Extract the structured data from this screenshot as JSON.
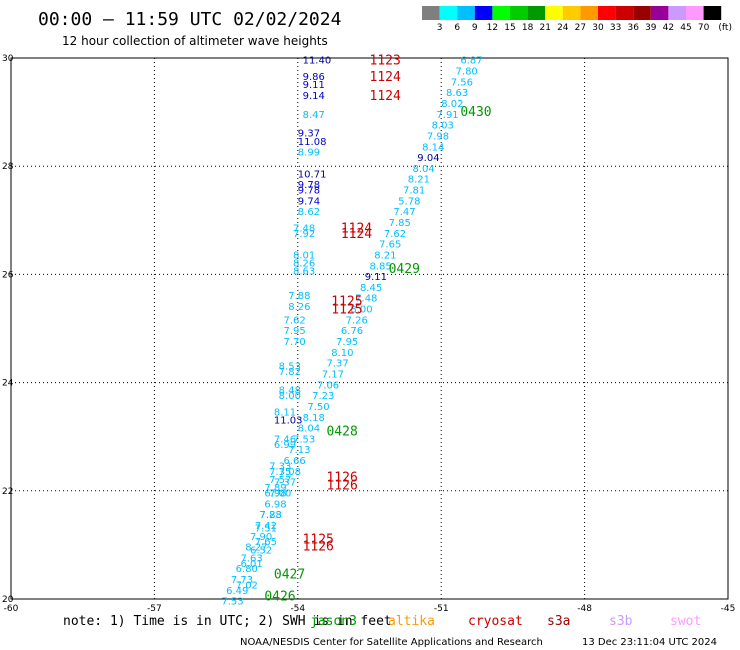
{
  "header": {
    "title": "00:00 – 11:59 UTC 02/02/2024",
    "subtitle": "12 hour collection of altimeter wave heights"
  },
  "color_scale": {
    "labels": [
      "3",
      "6",
      "9",
      "12",
      "15",
      "18",
      "21",
      "24",
      "27",
      "30",
      "33",
      "36",
      "39",
      "42",
      "45",
      "70"
    ],
    "unit": "(ft)",
    "colors": [
      "#7f7f7f",
      "#00ffff",
      "#00bfff",
      "#0000ff",
      "#00ff00",
      "#00cc00",
      "#009900",
      "#ffff00",
      "#ffcc00",
      "#ff9900",
      "#ff0000",
      "#cc0000",
      "#990000",
      "#990099",
      "#cc99ff",
      "#ff99ff",
      "#000000"
    ]
  },
  "footer": {
    "note": "note: 1) Time is in UTC; 2) SWH is in feet",
    "credit": "NOAA/NESDIS Center for Satellite Applications and Research",
    "timestamp": "13 Dec 23:11:04 UTC 2024",
    "satellites": [
      {
        "name": "jason3",
        "color": "#009900"
      },
      {
        "name": "altika",
        "color": "#ff9900"
      },
      {
        "name": "cryosat",
        "color": "#cc0000"
      },
      {
        "name": "s3a",
        "color": "#990000"
      },
      {
        "name": "s3b",
        "color": "#cc99ff"
      },
      {
        "name": "swot",
        "color": "#ff99ff"
      }
    ]
  },
  "chart_data": {
    "type": "scatter",
    "title": "00:00 – 11:59 UTC 02/02/2024",
    "xlim": [
      -60,
      -45
    ],
    "ylim": [
      20,
      30
    ],
    "xticks": [
      "-60",
      "-57",
      "-54",
      "-51",
      "-48",
      "-45"
    ],
    "yticks": [
      "20",
      "22",
      "24",
      "26",
      "28",
      "30"
    ],
    "grid": true,
    "series": [
      {
        "name": "jason3",
        "color": "#009900",
        "pass_labels": [
          {
            "label": "0430",
            "x": -50.6,
            "y": 29.0
          },
          {
            "label": "0429",
            "x": -52.1,
            "y": 26.1
          },
          {
            "label": "0428",
            "x": -53.4,
            "y": 23.1
          },
          {
            "label": "0427",
            "x": -54.5,
            "y": 20.45
          },
          {
            "label": "0426",
            "x": -54.7,
            "y": 20.05
          }
        ],
        "points": [
          {
            "x": -50.6,
            "y": 29.95,
            "v": "6.87",
            "c": "#00bfff"
          },
          {
            "x": -50.7,
            "y": 29.75,
            "v": "7.80",
            "c": "#00bfff"
          },
          {
            "x": -50.8,
            "y": 29.55,
            "v": "7.56",
            "c": "#00bfff"
          },
          {
            "x": -50.9,
            "y": 29.35,
            "v": "8.63",
            "c": "#00bfff"
          },
          {
            "x": -51.0,
            "y": 29.15,
            "v": "8.02",
            "c": "#00bfff"
          },
          {
            "x": -51.1,
            "y": 28.95,
            "v": "7.91",
            "c": "#00bfff"
          },
          {
            "x": -51.2,
            "y": 28.75,
            "v": "8.03",
            "c": "#00bfff"
          },
          {
            "x": -51.3,
            "y": 28.55,
            "v": "7.98",
            "c": "#00bfff"
          },
          {
            "x": -51.4,
            "y": 28.35,
            "v": "8.14",
            "c": "#00bfff"
          },
          {
            "x": -51.5,
            "y": 28.15,
            "v": "9.04",
            "c": "#000099"
          },
          {
            "x": -51.6,
            "y": 27.95,
            "v": "8.04",
            "c": "#00bfff"
          },
          {
            "x": -51.7,
            "y": 27.75,
            "v": "8.21",
            "c": "#00bfff"
          },
          {
            "x": -51.8,
            "y": 27.55,
            "v": "7.81",
            "c": "#00bfff"
          },
          {
            "x": -51.9,
            "y": 27.35,
            "v": "5.78",
            "c": "#00bfff"
          },
          {
            "x": -52.0,
            "y": 27.15,
            "v": "7.47",
            "c": "#00bfff"
          },
          {
            "x": -52.1,
            "y": 26.95,
            "v": "7.85",
            "c": "#00bfff"
          },
          {
            "x": -52.2,
            "y": 26.75,
            "v": "7.62",
            "c": "#00bfff"
          },
          {
            "x": -52.3,
            "y": 26.55,
            "v": "7.65",
            "c": "#00bfff"
          },
          {
            "x": -52.4,
            "y": 26.35,
            "v": "8.21",
            "c": "#00bfff"
          },
          {
            "x": -52.5,
            "y": 26.15,
            "v": "8.85",
            "c": "#00bfff"
          },
          {
            "x": -52.6,
            "y": 25.95,
            "v": "9.11",
            "c": "#000099"
          },
          {
            "x": -52.7,
            "y": 25.75,
            "v": "8.45",
            "c": "#00bfff"
          },
          {
            "x": -52.8,
            "y": 25.55,
            "v": "7.48",
            "c": "#00bfff"
          },
          {
            "x": -52.9,
            "y": 25.35,
            "v": "8.00",
            "c": "#00bfff"
          },
          {
            "x": -53.0,
            "y": 25.15,
            "v": "7.26",
            "c": "#00bfff"
          },
          {
            "x": -53.1,
            "y": 24.95,
            "v": "6.76",
            "c": "#00bfff"
          },
          {
            "x": -53.2,
            "y": 24.75,
            "v": "7.95",
            "c": "#00bfff"
          },
          {
            "x": -53.3,
            "y": 24.55,
            "v": "8.10",
            "c": "#00bfff"
          },
          {
            "x": -53.4,
            "y": 24.35,
            "v": "7.37",
            "c": "#00bfff"
          },
          {
            "x": -53.5,
            "y": 24.15,
            "v": "7.17",
            "c": "#00bfff"
          },
          {
            "x": -53.6,
            "y": 23.95,
            "v": "7.06",
            "c": "#00bfff"
          },
          {
            "x": -53.7,
            "y": 23.75,
            "v": "7.23",
            "c": "#00bfff"
          },
          {
            "x": -53.8,
            "y": 23.55,
            "v": "7.50",
            "c": "#00bfff"
          },
          {
            "x": -53.9,
            "y": 23.35,
            "v": "8.18",
            "c": "#00bfff"
          },
          {
            "x": -54.0,
            "y": 23.15,
            "v": "8.04",
            "c": "#00bfff"
          },
          {
            "x": -54.1,
            "y": 22.95,
            "v": "7.53",
            "c": "#00bfff"
          },
          {
            "x": -54.2,
            "y": 22.75,
            "v": "7.13",
            "c": "#00bfff"
          },
          {
            "x": -54.3,
            "y": 22.55,
            "v": "6.66",
            "c": "#00bfff"
          },
          {
            "x": -54.4,
            "y": 22.35,
            "v": "7.08",
            "c": "#00bfff"
          },
          {
            "x": -54.5,
            "y": 22.15,
            "v": "7.37",
            "c": "#00bfff"
          },
          {
            "x": -54.6,
            "y": 21.95,
            "v": "7.00",
            "c": "#00bfff"
          },
          {
            "x": -54.7,
            "y": 21.75,
            "v": "6.98",
            "c": "#00bfff"
          },
          {
            "x": -54.8,
            "y": 21.55,
            "v": "7.28",
            "c": "#00bfff"
          },
          {
            "x": -54.9,
            "y": 21.35,
            "v": "7.42",
            "c": "#00bfff"
          },
          {
            "x": -55.0,
            "y": 21.15,
            "v": "7.90",
            "c": "#00bfff"
          },
          {
            "x": -55.1,
            "y": 20.95,
            "v": "8.27",
            "c": "#00bfff"
          },
          {
            "x": -55.2,
            "y": 20.75,
            "v": "7.63",
            "c": "#00bfff"
          },
          {
            "x": -55.3,
            "y": 20.55,
            "v": "6.80",
            "c": "#00bfff"
          },
          {
            "x": -55.4,
            "y": 20.35,
            "v": "7.73",
            "c": "#00bfff"
          },
          {
            "x": -55.5,
            "y": 20.15,
            "v": "6.49",
            "c": "#00bfff"
          },
          {
            "x": -55.6,
            "y": 19.95,
            "v": "7.53",
            "c": "#00bfff"
          }
        ]
      },
      {
        "name": "cryosat",
        "color": "#cc0000",
        "pass_labels": [
          {
            "label": "1123",
            "x": -52.5,
            "y": 29.95
          },
          {
            "label": "1124",
            "x": -52.5,
            "y": 29.65
          },
          {
            "label": "1124",
            "x": -52.5,
            "y": 29.3
          },
          {
            "label": "1124",
            "x": -53.1,
            "y": 26.85
          },
          {
            "label": "1124",
            "x": -53.1,
            "y": 26.75
          },
          {
            "label": "1125",
            "x": -53.3,
            "y": 25.5
          },
          {
            "label": "1125",
            "x": -53.3,
            "y": 25.35
          },
          {
            "label": "1126",
            "x": -53.4,
            "y": 22.25
          },
          {
            "label": "1126",
            "x": -53.4,
            "y": 22.1
          },
          {
            "label": "1125",
            "x": -53.9,
            "y": 21.1
          },
          {
            "label": "1126",
            "x": -53.9,
            "y": 20.97
          }
        ],
        "points": [
          {
            "x": -53.9,
            "y": 29.95,
            "v": "11.40",
            "c": "#000099"
          },
          {
            "x": -53.9,
            "y": 29.65,
            "v": "9.86",
            "c": "#0000cc"
          },
          {
            "x": -53.9,
            "y": 29.5,
            "v": "9.11",
            "c": "#0000cc"
          },
          {
            "x": -53.9,
            "y": 29.3,
            "v": "9.14",
            "c": "#0000cc"
          },
          {
            "x": -53.9,
            "y": 28.95,
            "v": "8.47",
            "c": "#00bfff"
          },
          {
            "x": -54.0,
            "y": 28.6,
            "v": "9.37",
            "c": "#0000cc"
          },
          {
            "x": -54.0,
            "y": 28.45,
            "v": "11.08",
            "c": "#0000cc"
          },
          {
            "x": -54.0,
            "y": 28.25,
            "v": "8.99",
            "c": "#00bfff"
          },
          {
            "x": -54.0,
            "y": 27.85,
            "v": "10.71",
            "c": "#000099"
          },
          {
            "x": -54.0,
            "y": 27.65,
            "v": "9.78",
            "c": "#0000cc"
          },
          {
            "x": -54.0,
            "y": 27.55,
            "v": "9.78",
            "c": "#0000cc"
          },
          {
            "x": -54.0,
            "y": 27.35,
            "v": "9.74",
            "c": "#0000cc"
          },
          {
            "x": -54.0,
            "y": 27.15,
            "v": "8.62",
            "c": "#00bfff"
          },
          {
            "x": -54.1,
            "y": 26.85,
            "v": "7.48",
            "c": "#00bfff"
          },
          {
            "x": -54.1,
            "y": 26.75,
            "v": "7.92",
            "c": "#00bfff"
          },
          {
            "x": -54.1,
            "y": 26.35,
            "v": "8.01",
            "c": "#00bfff"
          },
          {
            "x": -54.1,
            "y": 26.2,
            "v": "8.26",
            "c": "#00bfff"
          },
          {
            "x": -54.1,
            "y": 26.05,
            "v": "8.63",
            "c": "#00bfff"
          },
          {
            "x": -54.2,
            "y": 25.6,
            "v": "7.88",
            "c": "#00bfff"
          },
          {
            "x": -54.2,
            "y": 25.4,
            "v": "8.26",
            "c": "#00bfff"
          },
          {
            "x": -54.3,
            "y": 25.15,
            "v": "7.62",
            "c": "#00bfff"
          },
          {
            "x": -54.3,
            "y": 24.95,
            "v": "7.95",
            "c": "#00bfff"
          },
          {
            "x": -54.3,
            "y": 24.75,
            "v": "7.70",
            "c": "#00bfff"
          },
          {
            "x": -54.4,
            "y": 24.3,
            "v": "8.53",
            "c": "#00bfff"
          },
          {
            "x": -54.4,
            "y": 24.2,
            "v": "7.82",
            "c": "#00bfff"
          },
          {
            "x": -54.4,
            "y": 23.85,
            "v": "8.48",
            "c": "#00bfff"
          },
          {
            "x": -54.4,
            "y": 23.75,
            "v": "8.00",
            "c": "#00bfff"
          },
          {
            "x": -54.5,
            "y": 23.45,
            "v": "8.11",
            "c": "#00bfff"
          },
          {
            "x": -54.5,
            "y": 23.3,
            "v": "11.03",
            "c": "#000099"
          },
          {
            "x": -54.5,
            "y": 22.95,
            "v": "7.46",
            "c": "#00bfff"
          },
          {
            "x": -54.5,
            "y": 22.85,
            "v": "6.99",
            "c": "#00bfff"
          },
          {
            "x": -54.6,
            "y": 22.45,
            "v": "7.33",
            "c": "#00bfff"
          },
          {
            "x": -54.6,
            "y": 22.35,
            "v": "7.35",
            "c": "#00bfff"
          },
          {
            "x": -54.6,
            "y": 22.2,
            "v": "7.57",
            "c": "#00bfff"
          },
          {
            "x": -54.7,
            "y": 22.05,
            "v": "7.89",
            "c": "#00bfff"
          },
          {
            "x": -54.7,
            "y": 21.95,
            "v": "6.98",
            "c": "#00bfff"
          },
          {
            "x": -54.8,
            "y": 21.55,
            "v": "7.83",
            "c": "#00bfff"
          },
          {
            "x": -54.9,
            "y": 21.3,
            "v": "7.51",
            "c": "#00bfff"
          },
          {
            "x": -54.9,
            "y": 21.05,
            "v": "7.65",
            "c": "#00bfff"
          },
          {
            "x": -55.0,
            "y": 20.9,
            "v": "6.52",
            "c": "#00bfff"
          },
          {
            "x": -55.2,
            "y": 20.65,
            "v": "6.01",
            "c": "#00bfff"
          },
          {
            "x": -55.3,
            "y": 20.25,
            "v": "7.02",
            "c": "#00bfff"
          }
        ]
      }
    ]
  }
}
